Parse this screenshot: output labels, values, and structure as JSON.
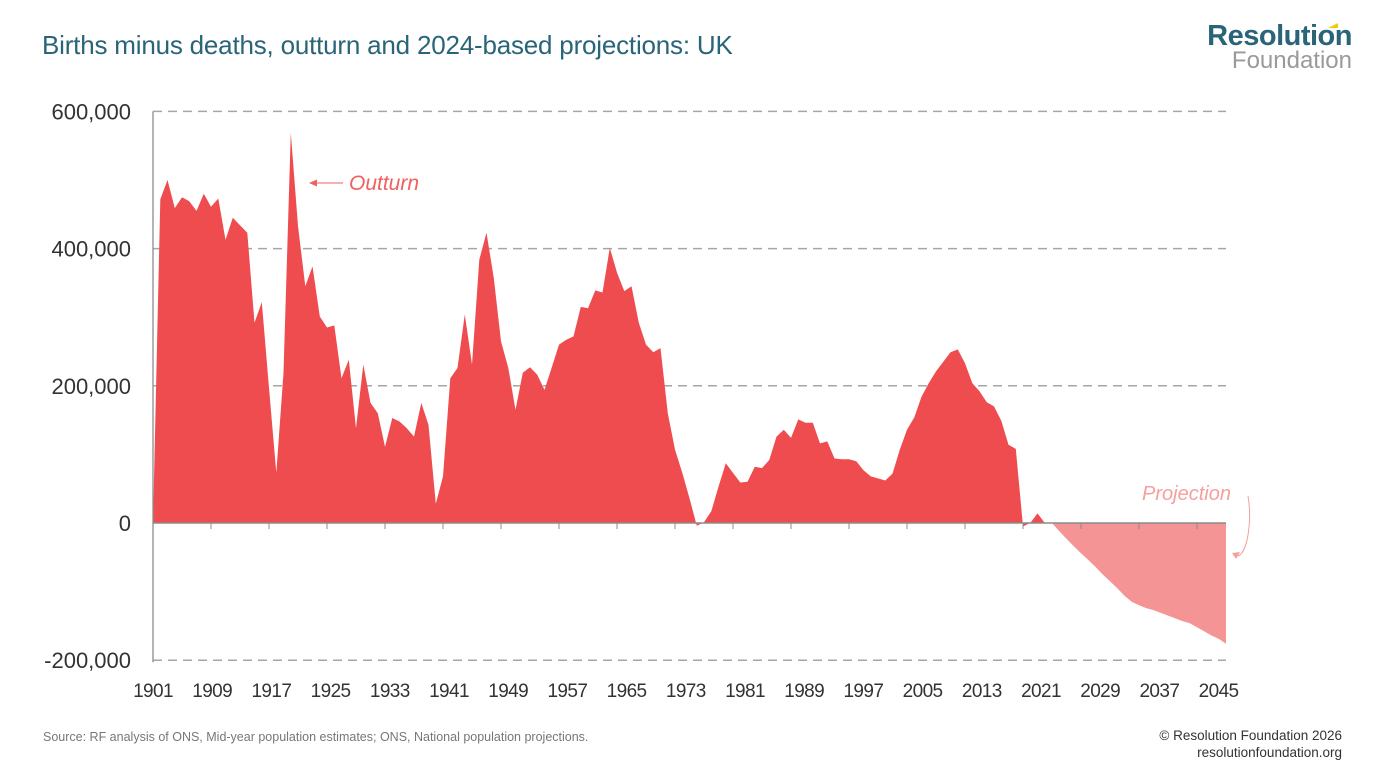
{
  "title": "Births minus deaths, outturn and 2024-based projections: UK",
  "logo": {
    "line1": "Resolution",
    "line2": "Foundation"
  },
  "source": "Source: RF analysis of ONS, Mid-year population estimates; ONS, National population projections.",
  "footer": {
    "copyright": "© Resolution Foundation 2026",
    "url": "resolutionfoundation.org"
  },
  "colors": {
    "outturn": "#ef4c50",
    "projection": "#f59494",
    "title": "#2a6478",
    "grid": "#a6a6a6"
  },
  "chart_data": {
    "type": "area",
    "title": "Births minus deaths, outturn and 2024-based projections: UK",
    "xlabel": "",
    "ylabel": "",
    "ylim": [
      -200000,
      600000
    ],
    "xlim": [
      1901,
      2049
    ],
    "y_ticks": [
      600000,
      400000,
      200000,
      0,
      -200000
    ],
    "y_tick_labels": [
      "600,000",
      "400,000",
      "200,000",
      "0",
      "-200,000"
    ],
    "x_tick_labels": [
      "1901",
      "1909",
      "1917",
      "1925",
      "1933",
      "1941",
      "1949",
      "1957",
      "1965",
      "1973",
      "1981",
      "1989",
      "1997",
      "2005",
      "2013",
      "2021",
      "2029",
      "2037",
      "2045"
    ],
    "grid": "horizontal dashed",
    "annotations": [
      {
        "text": "Outturn",
        "series": "Outturn"
      },
      {
        "text": "Projection",
        "series": "Projection"
      }
    ],
    "series": [
      {
        "name": "Outturn",
        "start_year": 1902,
        "values": [
          472000,
          500000,
          459000,
          475000,
          469000,
          455000,
          480000,
          461000,
          473000,
          413000,
          445000,
          434000,
          423000,
          292000,
          322000,
          197000,
          73000,
          219000,
          569000,
          433000,
          345000,
          374000,
          301000,
          285000,
          288000,
          211000,
          238000,
          138000,
          231000,
          175000,
          160000,
          111000,
          153000,
          148000,
          138000,
          126000,
          175000,
          143000,
          28000,
          68000,
          211000,
          226000,
          304000,
          231000,
          384000,
          423000,
          357000,
          265000,
          226000,
          165000,
          219000,
          227000,
          216000,
          194000,
          227000,
          260000,
          267000,
          272000,
          315000,
          313000,
          339000,
          336000,
          401000,
          365000,
          338000,
          345000,
          292000,
          260000,
          249000,
          255000,
          160000,
          107000,
          73000,
          36000,
          -4000,
          1000,
          17000,
          53000,
          87000,
          73000,
          59000,
          60000,
          82000,
          80000,
          92000,
          126000,
          136000,
          124000,
          151000,
          146000,
          146000,
          116000,
          119000,
          94000,
          93000,
          93000,
          90000,
          77000,
          68000,
          65000,
          62000,
          72000,
          107000,
          136000,
          154000,
          184000,
          204000,
          221000,
          235000,
          249000,
          253000,
          233000,
          204000,
          192000,
          176000,
          170000,
          149000,
          114000,
          108000,
          -5000,
          0,
          14000,
          0
        ]
      },
      {
        "name": "Projection",
        "start_year": 2025,
        "values": [
          0,
          -12000,
          -23000,
          -34000,
          -44000,
          -54000,
          -64000,
          -75000,
          -85000,
          -95000,
          -106000,
          -115000,
          -120000,
          -124000,
          -127000,
          -131000,
          -135000,
          -139000,
          -143000,
          -146000,
          -152000,
          -158000,
          -164000,
          -169000,
          -176000
        ]
      }
    ]
  }
}
